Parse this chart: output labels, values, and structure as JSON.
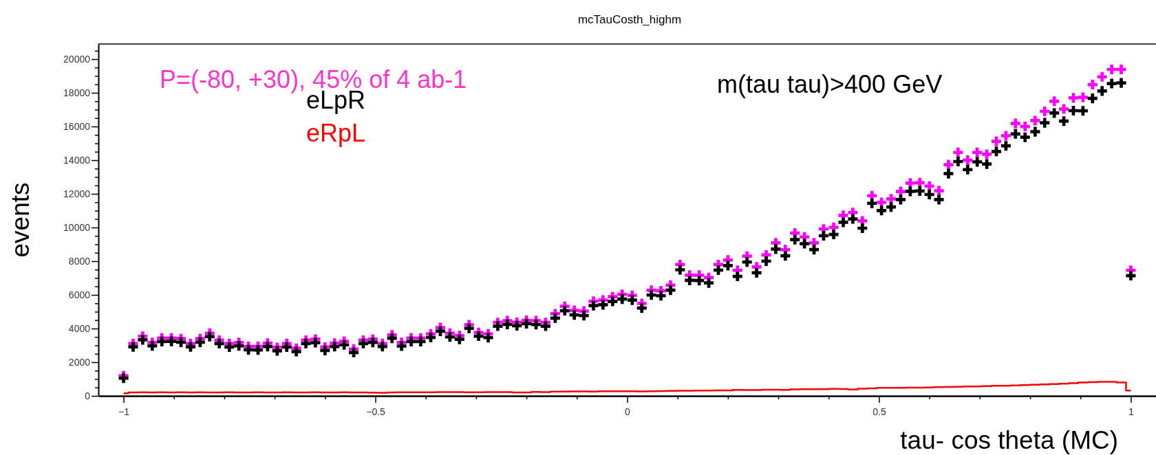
{
  "chart_data": {
    "type": "scatter",
    "title": "mcTauCosth_highm",
    "xlabel": "tau- cos theta (MC)",
    "ylabel": "events",
    "annotations": [
      "P=(-80, +30), 45% of 4 ab-1",
      "m(tau tau)>400 GeV"
    ],
    "x": [
      -1.0,
      -0.981,
      -0.962,
      -0.943,
      -0.924,
      -0.905,
      -0.886,
      -0.867,
      -0.848,
      -0.829,
      -0.81,
      -0.79,
      -0.771,
      -0.752,
      -0.733,
      -0.714,
      -0.695,
      -0.676,
      -0.657,
      -0.638,
      -0.619,
      -0.6,
      -0.581,
      -0.562,
      -0.543,
      -0.524,
      -0.505,
      -0.486,
      -0.467,
      -0.448,
      -0.429,
      -0.41,
      -0.39,
      -0.371,
      -0.352,
      -0.333,
      -0.314,
      -0.295,
      -0.276,
      -0.257,
      -0.238,
      -0.219,
      -0.2,
      -0.181,
      -0.162,
      -0.143,
      -0.124,
      -0.105,
      -0.086,
      -0.067,
      -0.048,
      -0.029,
      -0.01,
      0.01,
      0.029,
      0.048,
      0.067,
      0.086,
      0.105,
      0.124,
      0.143,
      0.162,
      0.181,
      0.2,
      0.219,
      0.238,
      0.257,
      0.276,
      0.295,
      0.314,
      0.333,
      0.352,
      0.371,
      0.39,
      0.41,
      0.429,
      0.448,
      0.467,
      0.486,
      0.505,
      0.524,
      0.543,
      0.562,
      0.581,
      0.6,
      0.619,
      0.638,
      0.657,
      0.676,
      0.695,
      0.714,
      0.733,
      0.752,
      0.771,
      0.79,
      0.81,
      0.829,
      0.848,
      0.867,
      0.886,
      0.905,
      0.924,
      0.943,
      0.962,
      0.981,
      1.0
    ],
    "series": [
      {
        "color": "#ff00ff",
        "marker": "cross",
        "values": [
          1200,
          3110,
          3540,
          3170,
          3440,
          3440,
          3400,
          3110,
          3400,
          3720,
          3310,
          3110,
          3170,
          2940,
          2940,
          3130,
          2880,
          3110,
          2830,
          3310,
          3370,
          2900,
          3130,
          3240,
          2780,
          3310,
          3370,
          3110,
          3620,
          3170,
          3440,
          3440,
          3680,
          4060,
          3720,
          3580,
          4220,
          3760,
          3680,
          4360,
          4470,
          4370,
          4490,
          4470,
          4360,
          4880,
          5320,
          5080,
          5040,
          5620,
          5690,
          5890,
          6030,
          5970,
          5490,
          6270,
          6240,
          6580,
          7800,
          7170,
          7170,
          7030,
          7800,
          8070,
          7460,
          8300,
          7660,
          8370,
          9090,
          8680,
          9670,
          9440,
          9090,
          9910,
          10010,
          10720,
          10890,
          10390,
          11890,
          11490,
          11700,
          12140,
          12640,
          12660,
          12460,
          12180,
          13730,
          14460,
          14000,
          14460,
          14350,
          15120,
          15450,
          16180,
          16000,
          16350,
          16900,
          17500,
          17040,
          17700,
          17730,
          18490,
          18950,
          19390,
          19390,
          7460
        ]
      },
      {
        "name": "eLpR",
        "color": "#000000",
        "marker": "cross",
        "values": [
          1050,
          2910,
          3330,
          2970,
          3230,
          3240,
          3190,
          2910,
          3190,
          3520,
          3110,
          2900,
          2970,
          2740,
          2730,
          2930,
          2680,
          2900,
          2630,
          3110,
          3160,
          2700,
          2930,
          3030,
          2580,
          3110,
          3180,
          2930,
          3420,
          2960,
          3230,
          3230,
          3470,
          3840,
          3500,
          3360,
          4010,
          3550,
          3460,
          4140,
          4250,
          4170,
          4290,
          4240,
          4140,
          4620,
          5060,
          4810,
          4770,
          5360,
          5410,
          5610,
          5750,
          5690,
          5220,
          5990,
          5950,
          6280,
          7490,
          6860,
          6850,
          6710,
          7470,
          7740,
          7100,
          7950,
          7310,
          8000,
          8720,
          8320,
          9280,
          9040,
          8690,
          9510,
          9590,
          10310,
          10510,
          9960,
          11440,
          11010,
          11220,
          11660,
          12150,
          12170,
          11960,
          11660,
          13200,
          13920,
          13440,
          13900,
          13770,
          14520,
          14850,
          15560,
          15360,
          15690,
          16220,
          16800,
          16320,
          16940,
          16930,
          17670,
          18110,
          18550,
          18590,
          7140
        ]
      },
      {
        "name": "eRpL",
        "type": "step",
        "color": "#ff0000",
        "values": [
          150,
          200,
          210,
          200,
          210,
          200,
          210,
          200,
          210,
          200,
          200,
          210,
          200,
          200,
          210,
          200,
          200,
          210,
          200,
          200,
          210,
          200,
          200,
          210,
          200,
          200,
          190,
          180,
          200,
          210,
          210,
          210,
          210,
          220,
          220,
          220,
          210,
          210,
          220,
          220,
          220,
          200,
          200,
          230,
          220,
          260,
          260,
          270,
          270,
          260,
          280,
          280,
          280,
          280,
          270,
          280,
          290,
          300,
          310,
          310,
          320,
          320,
          330,
          330,
          360,
          350,
          350,
          370,
          370,
          360,
          390,
          400,
          400,
          400,
          420,
          410,
          380,
          430,
          450,
          480,
          480,
          480,
          490,
          490,
          500,
          520,
          530,
          540,
          560,
          560,
          580,
          600,
          600,
          620,
          640,
          660,
          680,
          700,
          720,
          760,
          800,
          820,
          840,
          840,
          800,
          320
        ]
      }
    ],
    "legend": "top left",
    "grid": false,
    "xlim": [
      -1.05,
      1.05
    ],
    "xticks": [
      -1,
      {
        "value": -0.9,
        "label": null
      },
      {
        "value": -0.8,
        "label": null
      },
      {
        "value": -0.7,
        "label": null
      },
      {
        "value": -0.6,
        "label": null
      },
      -0.5,
      {
        "value": -0.4,
        "label": null
      },
      {
        "value": -0.3,
        "label": null
      },
      {
        "value": -0.2,
        "label": null
      },
      {
        "value": -0.1,
        "label": null
      },
      0,
      {
        "value": 0.1,
        "label": null
      },
      {
        "value": 0.2,
        "label": null
      },
      {
        "value": 0.3,
        "label": null
      },
      {
        "value": 0.4,
        "label": null
      },
      0.5,
      {
        "value": 0.6,
        "label": null
      },
      {
        "value": 0.7,
        "label": null
      },
      {
        "value": 0.8,
        "label": null
      },
      {
        "value": 0.9,
        "label": null
      },
      1
    ],
    "ylim": [
      0,
      20900
    ],
    "yticks": [
      0,
      {
        "value": 500,
        "label": null
      },
      {
        "value": 1000,
        "label": null
      },
      {
        "value": 1500,
        "label": null
      },
      2000,
      {
        "value": 2500,
        "label": null
      },
      {
        "value": 3000,
        "label": null
      },
      {
        "value": 3500,
        "label": null
      },
      4000,
      {
        "value": 4500,
        "label": null
      },
      {
        "value": 5000,
        "label": null
      },
      {
        "value": 5500,
        "label": null
      },
      6000,
      {
        "value": 6500,
        "label": null
      },
      {
        "value": 7000,
        "label": null
      },
      {
        "value": 7500,
        "label": null
      },
      8000,
      {
        "value": 8500,
        "label": null
      },
      {
        "value": 9000,
        "label": null
      },
      {
        "value": 9500,
        "label": null
      },
      10000,
      {
        "value": 10500,
        "label": null
      },
      {
        "value": 11000,
        "label": null
      },
      {
        "value": 11500,
        "label": null
      },
      12000,
      {
        "value": 12500,
        "label": null
      },
      {
        "value": 13000,
        "label": null
      },
      {
        "value": 13500,
        "label": null
      },
      14000,
      {
        "value": 14500,
        "label": null
      },
      {
        "value": 15000,
        "label": null
      },
      {
        "value": 15500,
        "label": null
      },
      16000,
      {
        "value": 16500,
        "label": null
      },
      {
        "value": 17000,
        "label": null
      },
      {
        "value": 17500,
        "label": null
      },
      18000,
      {
        "value": 18500,
        "label": null
      },
      {
        "value": 19000,
        "label": null
      },
      {
        "value": 19500,
        "label": null
      },
      20000,
      {
        "value": 20500,
        "label": null
      }
    ]
  }
}
